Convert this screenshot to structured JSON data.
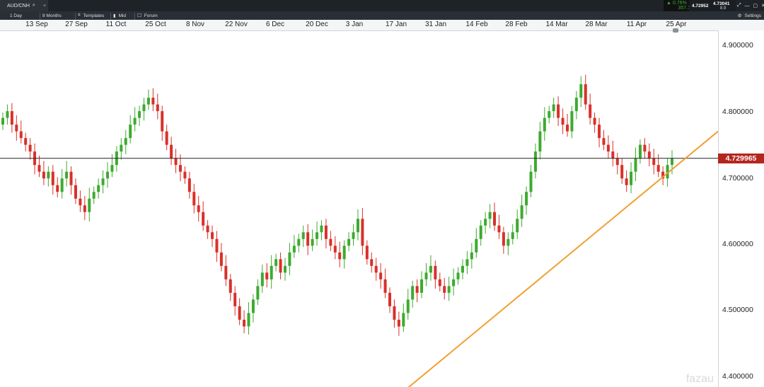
{
  "header": {
    "symbol": "AUD/CNH",
    "plus": "+",
    "change_pct": "0.76%",
    "change_pts": "357.1",
    "bid": "4.72952",
    "ask": "4.73041",
    "spread": "8.9"
  },
  "toolbar": {
    "interval": "1 Day",
    "range": "8 Months",
    "templates": "Templates",
    "price_mode": "Mid",
    "forum": "Forum",
    "settings": "Settings"
  },
  "date_axis": [
    "13 Sep",
    "27 Sep",
    "11 Oct",
    "25 Oct",
    "8 Nov",
    "22 Nov",
    "6 Dec",
    "20 Dec",
    "3 Jan",
    "17 Jan",
    "31 Jan",
    "14 Feb",
    "28 Feb",
    "14 Mar",
    "28 Mar",
    "11 Apr",
    "25 Apr"
  ],
  "price_axis": [
    "4.900000",
    "4.800000",
    "4.700000",
    "4.600000",
    "4.500000",
    "4.400000"
  ],
  "current_price": "4.729965",
  "colors": {
    "up": "#3daa2f",
    "down": "#d9302a",
    "trendline": "#f0a030",
    "current": "#b3261e"
  },
  "chart_data": {
    "type": "candlestick",
    "ylim": [
      4.39,
      4.92
    ],
    "current_price": 4.729965,
    "closes": [
      4.79,
      4.8,
      4.78,
      4.77,
      4.76,
      4.75,
      4.74,
      4.72,
      4.71,
      4.7,
      4.71,
      4.69,
      4.68,
      4.7,
      4.71,
      4.69,
      4.67,
      4.66,
      4.65,
      4.67,
      4.68,
      4.69,
      4.7,
      4.71,
      4.72,
      4.74,
      4.75,
      4.76,
      4.78,
      4.79,
      4.8,
      4.81,
      4.82,
      4.81,
      4.8,
      4.77,
      4.75,
      4.73,
      4.72,
      4.71,
      4.7,
      4.68,
      4.66,
      4.65,
      4.63,
      4.62,
      4.61,
      4.59,
      4.57,
      4.55,
      4.53,
      4.51,
      4.49,
      4.48,
      4.5,
      4.52,
      4.54,
      4.56,
      4.55,
      4.57,
      4.58,
      4.56,
      4.57,
      4.59,
      4.6,
      4.61,
      4.62,
      4.6,
      4.61,
      4.62,
      4.63,
      4.61,
      4.6,
      4.59,
      4.58,
      4.6,
      4.61,
      4.62,
      4.64,
      4.6,
      4.58,
      4.57,
      4.56,
      4.55,
      4.53,
      4.51,
      4.49,
      4.48,
      4.5,
      4.52,
      4.54,
      4.53,
      4.55,
      4.56,
      4.57,
      4.55,
      4.54,
      4.53,
      4.54,
      4.55,
      4.56,
      4.57,
      4.58,
      4.59,
      4.61,
      4.63,
      4.64,
      4.65,
      4.63,
      4.62,
      4.6,
      4.61,
      4.62,
      4.64,
      4.66,
      4.68,
      4.71,
      4.74,
      4.77,
      4.79,
      4.8,
      4.81,
      4.79,
      4.78,
      4.77,
      4.8,
      4.82,
      4.84,
      4.81,
      4.79,
      4.78,
      4.76,
      4.75,
      4.74,
      4.73,
      4.72,
      4.7,
      4.69,
      4.71,
      4.73,
      4.75,
      4.74,
      4.73,
      4.72,
      4.71,
      4.7,
      4.72,
      4.73
    ],
    "trendline": [
      [
        "2023-01-17",
        4.37
      ],
      [
        "2023-05-01",
        4.77
      ]
    ]
  }
}
